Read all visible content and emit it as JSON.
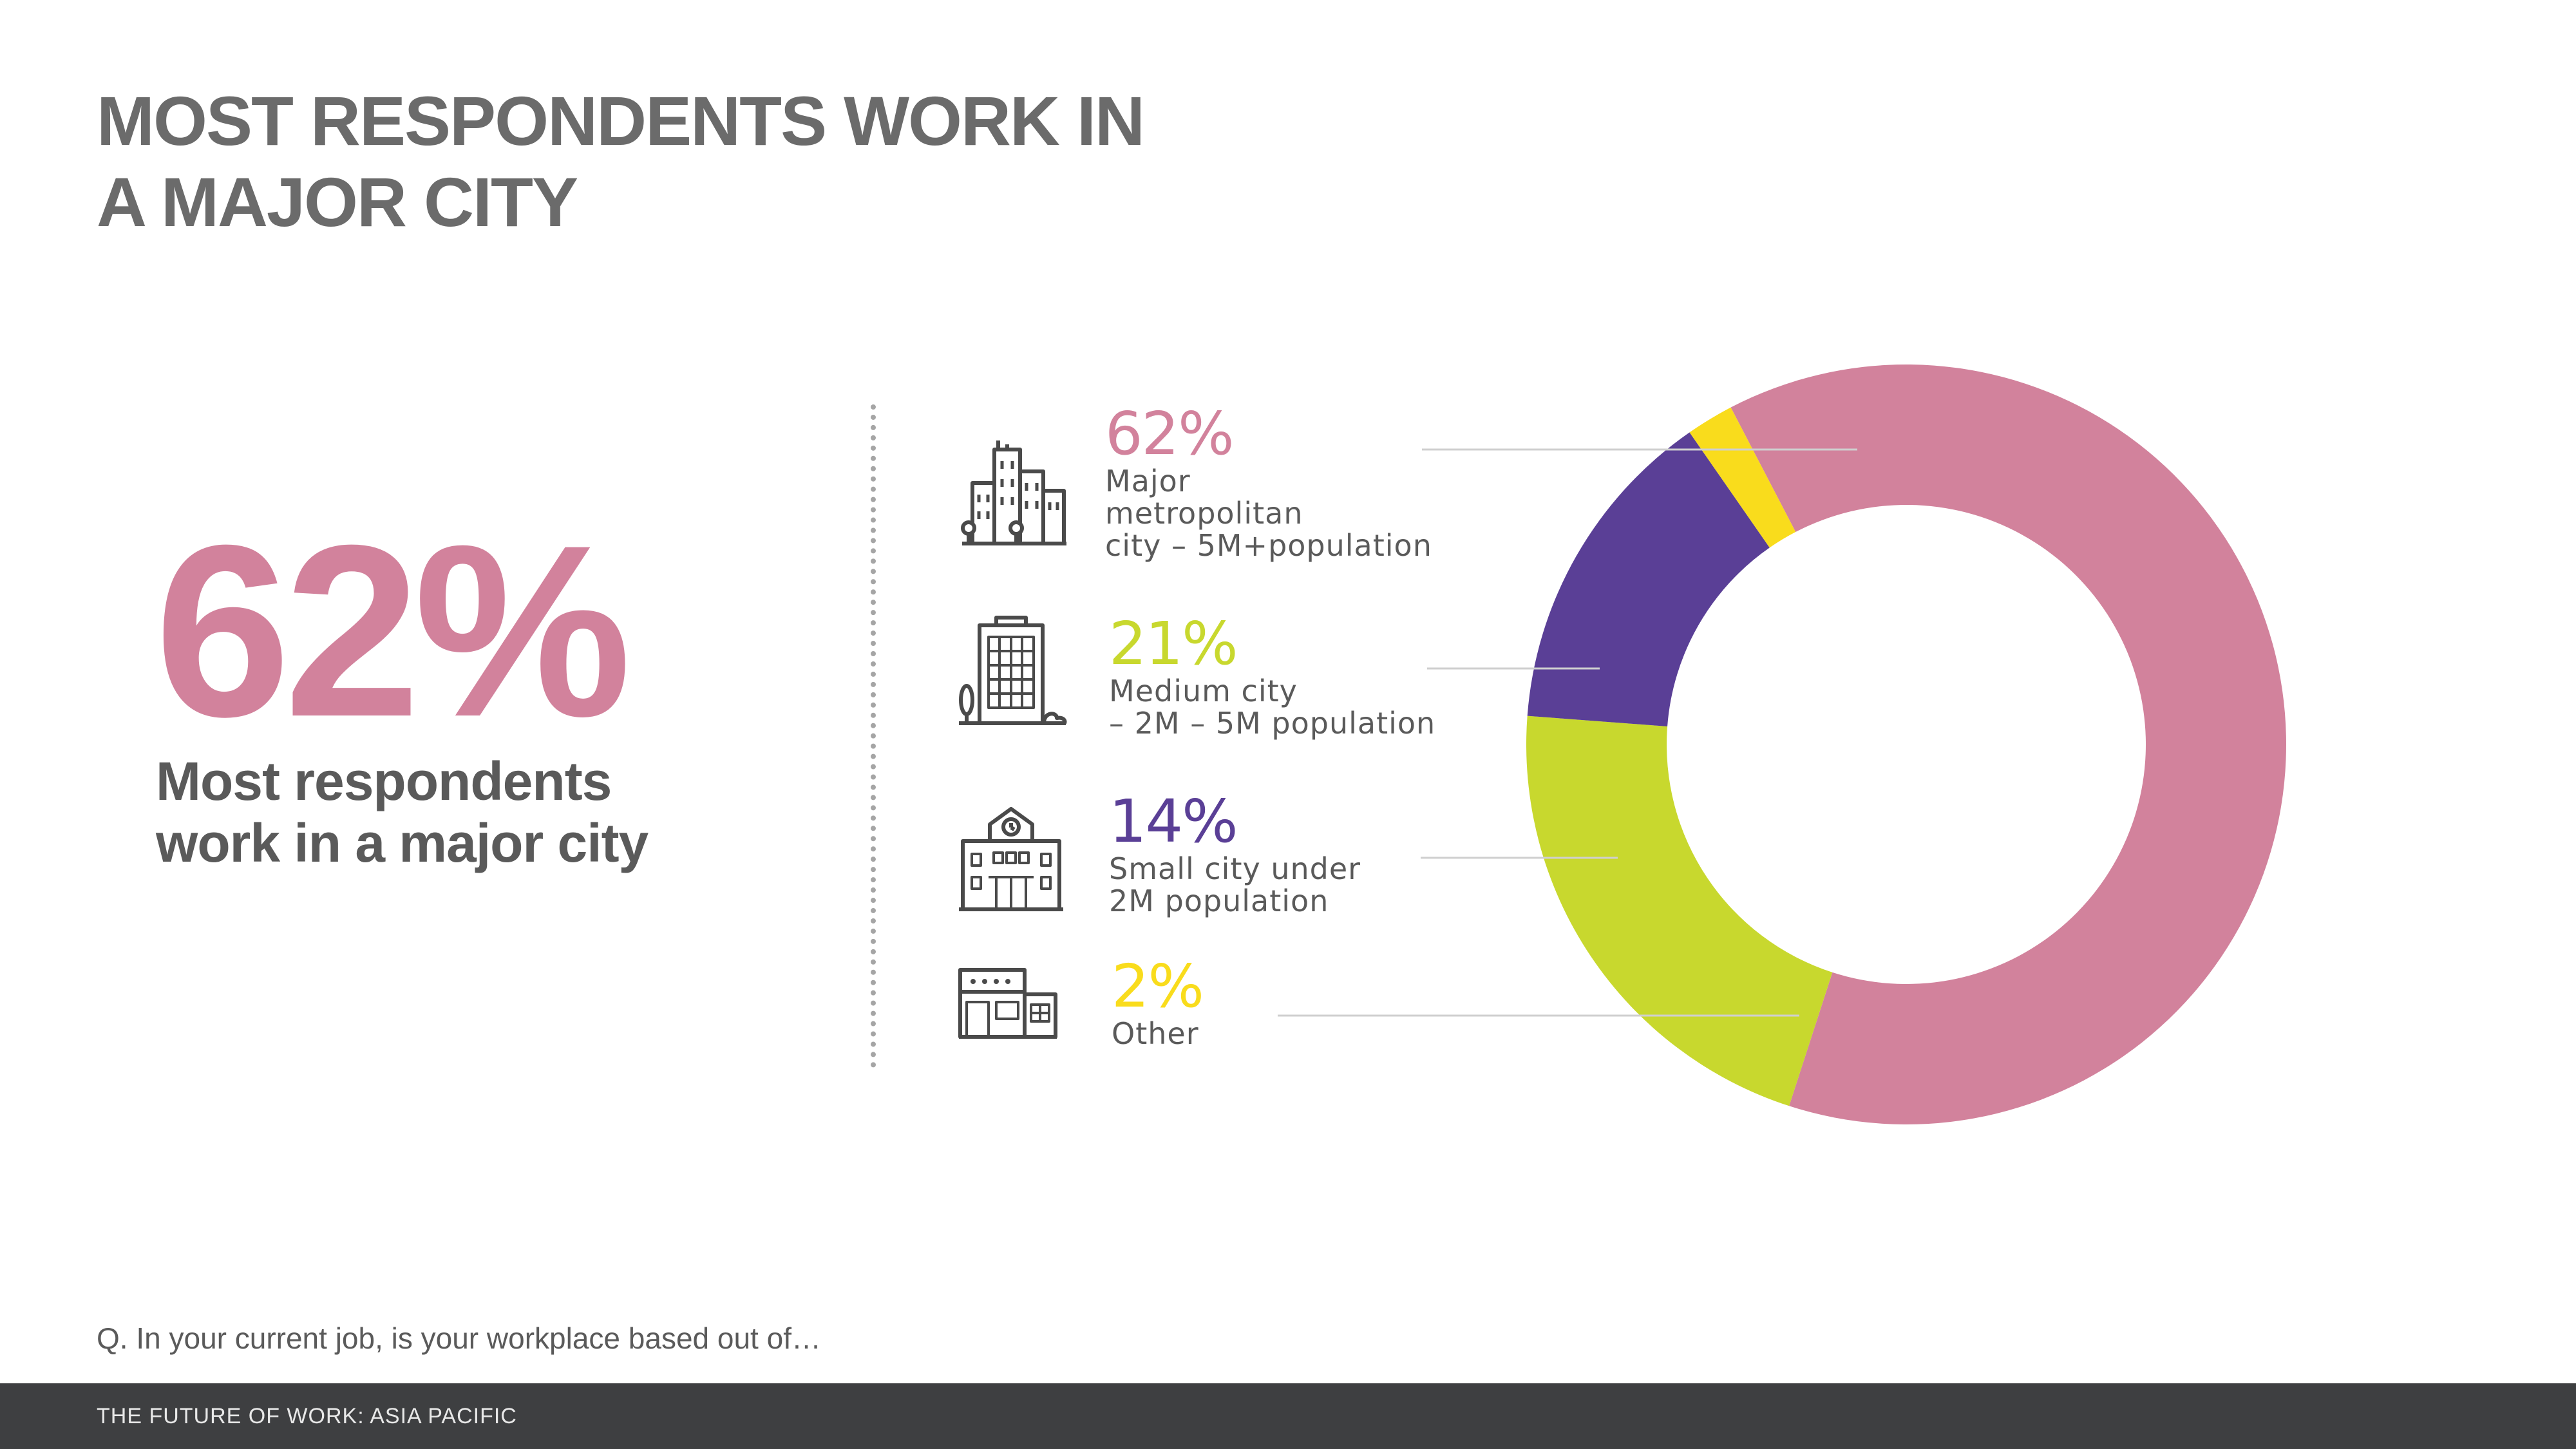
{
  "title_lines": [
    "MOST RESPONDENTS WORK IN",
    "A MAJOR CITY"
  ],
  "headline": {
    "value": "62%",
    "subtitle": "Most respondents work in a major city",
    "color": "#d2829c"
  },
  "chart_data": {
    "type": "pie",
    "donut": true,
    "slices": [
      {
        "pct_label": "62%",
        "value": 62,
        "label_lines": [
          "Major",
          "metropolitan",
          "city – 5M+population"
        ],
        "color": "#d2829c",
        "icon": "skyscrapers-icon"
      },
      {
        "pct_label": "21%",
        "value": 21,
        "label_lines": [
          "Medium city",
          "– 2M – 5M population"
        ],
        "color": "#c8d82e",
        "icon": "office-building-icon"
      },
      {
        "pct_label": "14%",
        "value": 14,
        "label_lines": [
          "Small city under",
          "2M population"
        ],
        "color": "#5a3f96",
        "icon": "town-hall-icon"
      },
      {
        "pct_label": "2%",
        "value": 2,
        "label_lines": [
          "Other"
        ],
        "color": "#f9dc1c",
        "icon": "shop-front-icon"
      }
    ]
  },
  "question": "Q. In your current job, is your workplace based out of…",
  "footer": "THE FUTURE OF WORK: ASIA PACIFIC"
}
